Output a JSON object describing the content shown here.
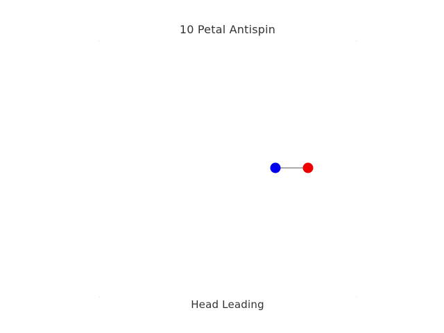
{
  "title": "10 Petal Antispin",
  "subtitle": "Head Leading",
  "colors": {
    "background": "#ffffff",
    "text": "#333333",
    "tether": "#555555",
    "head_ball": "#0000ee",
    "tail_ball": "#ee0000",
    "corner_marks": "#e6e6e6"
  }
}
